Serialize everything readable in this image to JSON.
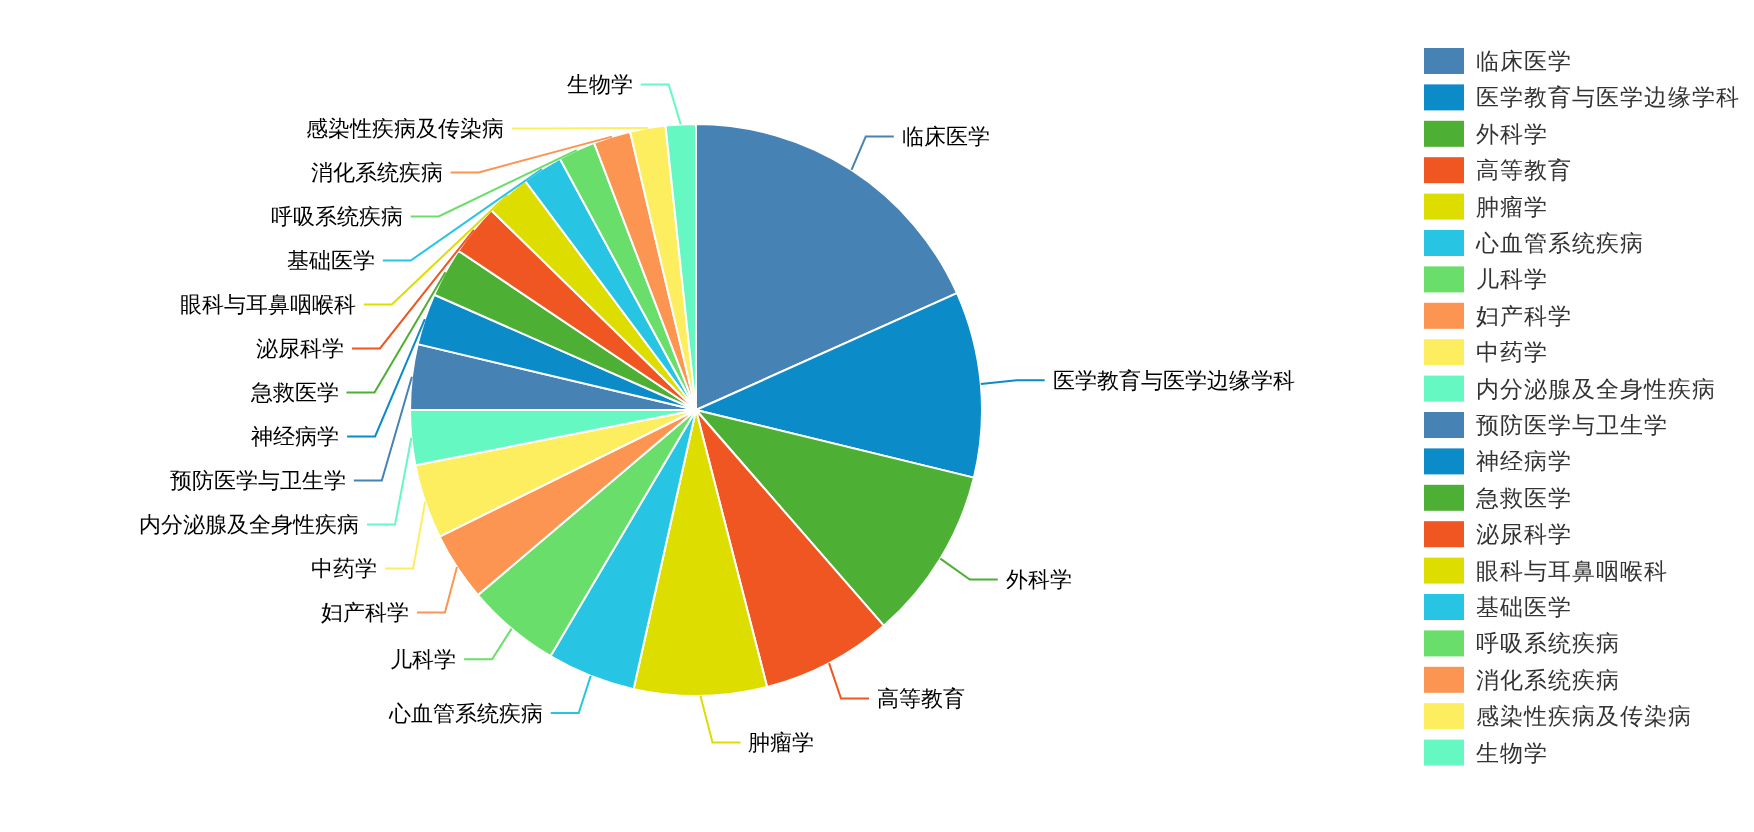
{
  "chart_data": {
    "type": "pie",
    "categories": [
      "临床医学",
      "医学教育与医学边缘学科",
      "外科学",
      "高等教育",
      "肿瘤学",
      "心血管系统疾病",
      "儿科学",
      "妇产科学",
      "中药学",
      "内分泌腺及全身性疾病",
      "预防医学与卫生学",
      "神经病学",
      "急救医学",
      "泌尿科学",
      "眼科与耳鼻咽喉科",
      "基础医学",
      "呼吸系统疾病",
      "消化系统疾病",
      "感染性疾病及传染病",
      "生物学"
    ],
    "values": [
      18.3,
      10.5,
      9.8,
      7.4,
      7.5,
      5,
      5.3,
      3.9,
      4.2,
      3.1,
      3.7,
      2.9,
      2.8,
      2.9,
      2.5,
      2.3,
      2.1,
      2.1,
      2,
      1.7
    ],
    "colors": [
      "#4682b4",
      "#0b8bc8",
      "#4daf34",
      "#ef5622",
      "#dddd00",
      "#27c5e3",
      "#6ade6a",
      "#fc9552",
      "#fdee5f",
      "#66f8c3",
      "#4682b4",
      "#0b8bc8",
      "#4daf34",
      "#ef5622",
      "#dddd00",
      "#27c5e3",
      "#6ade6a",
      "#fc9552",
      "#fdee5f",
      "#66f8c3"
    ],
    "legend": "right"
  }
}
